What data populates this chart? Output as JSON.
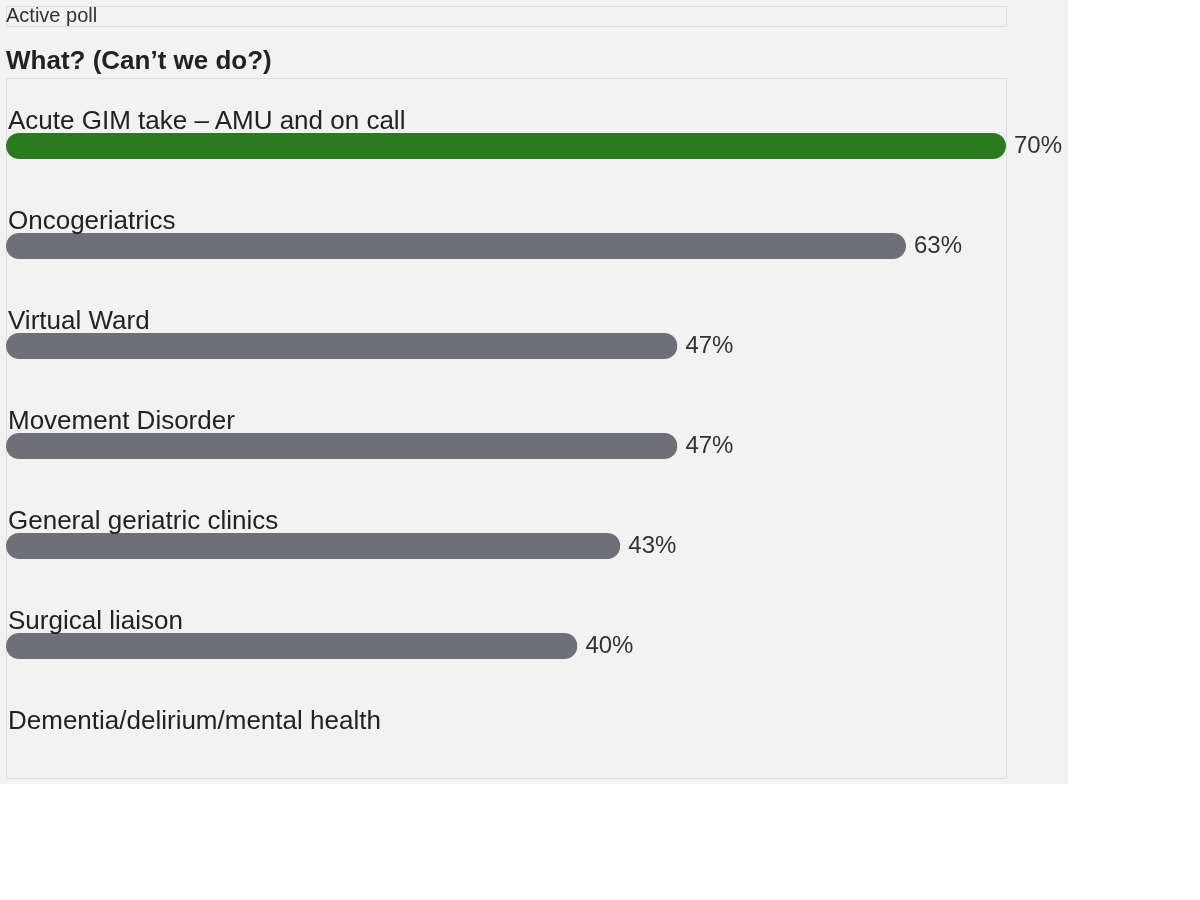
{
  "chart_data": {
    "type": "bar",
    "orientation": "horizontal",
    "title": "What? (Can’t we do?)",
    "annotations": [
      "Active poll"
    ],
    "categories": [
      "Acute GIM take – AMU and on call",
      "Oncogeriatrics",
      "Virtual Ward",
      "Movement Disorder",
      "General geriatric clinics",
      "Surgical liaison",
      "Dementia/delirium/mental health"
    ],
    "values": [
      70,
      63,
      47,
      47,
      43,
      40,
      null
    ],
    "value_labels": [
      "70%",
      "63%",
      "47%",
      "47%",
      "43%",
      "40%",
      null
    ],
    "colors": [
      "#2a7a1e",
      "#6f6f78",
      "#6f6f78",
      "#6f6f78",
      "#6f6f78",
      "#6f6f78",
      "#6f6f78"
    ]
  }
}
